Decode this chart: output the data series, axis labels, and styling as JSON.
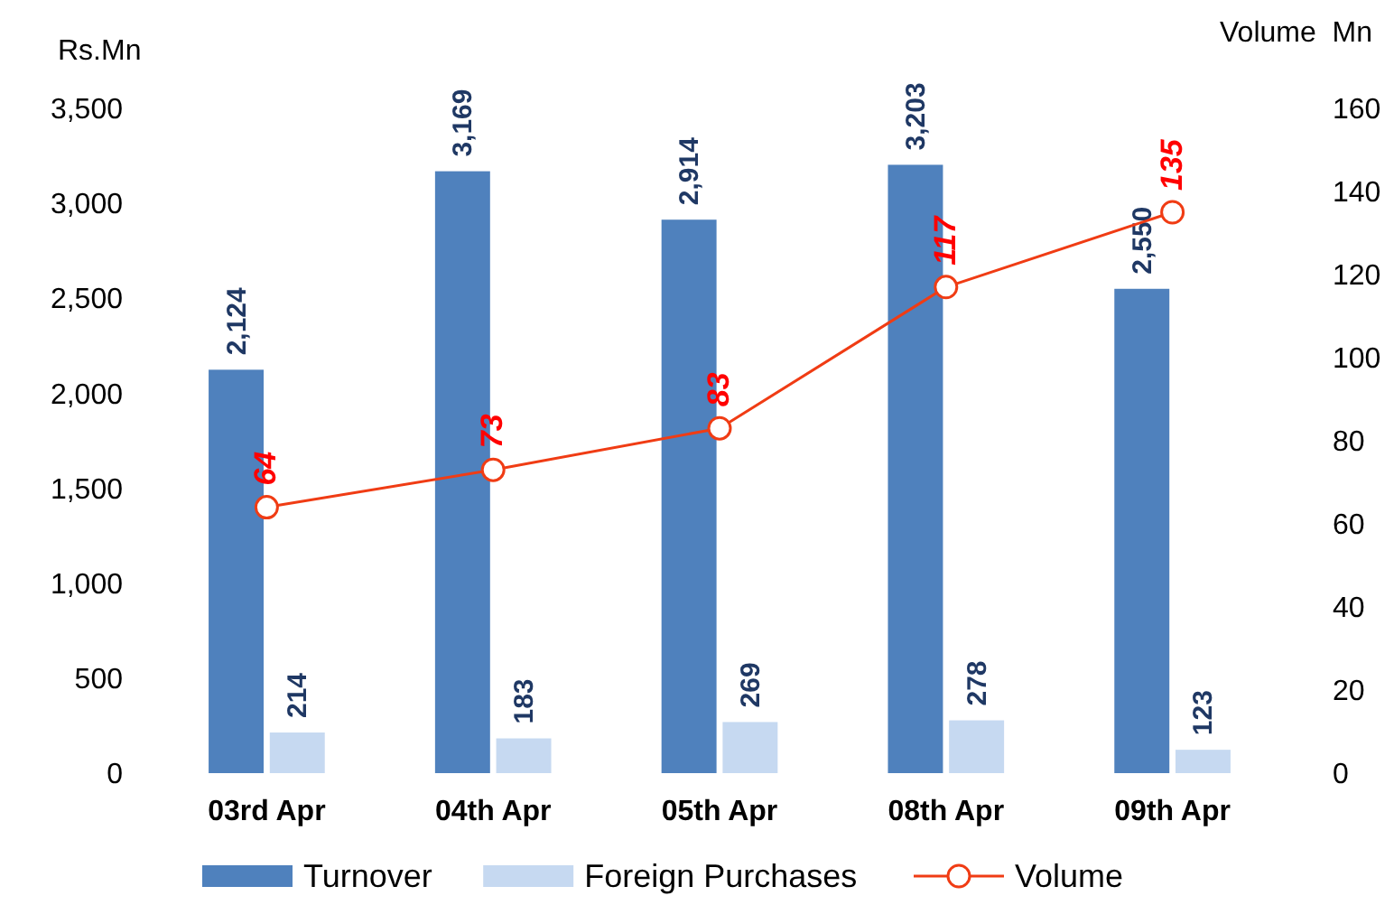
{
  "chart_data": {
    "type": "bar",
    "ylabel": "Rs.Mn",
    "y2label": "Volume  Mn",
    "categories": [
      "03rd Apr",
      "04th Apr",
      "05th Apr",
      "08th Apr",
      "09th Apr"
    ],
    "series": [
      {
        "name": "Turnover",
        "color": "#4f81bd",
        "values": [
          2124,
          3169,
          2914,
          3203,
          2550
        ],
        "value_labels": [
          "2,124",
          "3,169",
          "2,914",
          "3,203",
          "2,550"
        ]
      },
      {
        "name": "Foreign Purchases",
        "color": "#c6d9f1",
        "values": [
          214,
          183,
          269,
          278,
          123
        ],
        "value_labels": [
          "214",
          "183",
          "269",
          "278",
          "123"
        ]
      },
      {
        "name": "Volume",
        "type": "line",
        "axis": "y2",
        "color": "#f03c14",
        "marker": "circle",
        "values": [
          64,
          73,
          83,
          117,
          135
        ],
        "value_labels": [
          "64",
          "73",
          "83",
          "117",
          "135"
        ]
      }
    ],
    "ylim": [
      0,
      3500
    ],
    "yticks": [
      0,
      500,
      {
        "value": 1000,
        "label": "1,000"
      },
      {
        "value": 1500,
        "label": "1,500"
      },
      {
        "value": 2000,
        "label": "2,000"
      },
      {
        "value": 2500,
        "label": "2,500"
      },
      {
        "value": 3000,
        "label": "3,000"
      },
      {
        "value": 3500,
        "label": "3,500"
      }
    ],
    "y2lim": [
      0,
      160
    ],
    "y2ticks": [
      0,
      20,
      40,
      60,
      80,
      100,
      120,
      140,
      160
    ],
    "legend": "bottom",
    "grid": false
  }
}
